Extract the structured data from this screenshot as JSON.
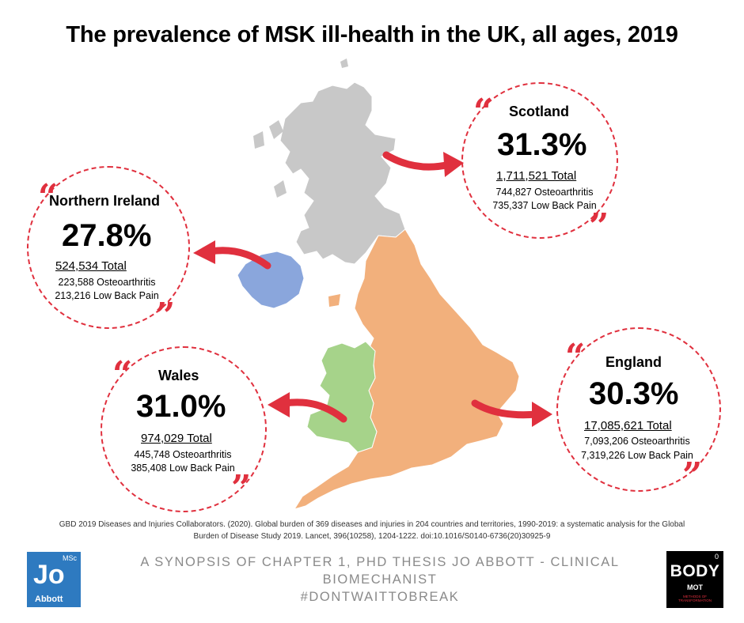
{
  "title": "The prevalence of MSK ill-health in the UK, all ages, 2019",
  "colors": {
    "accent": "#e0303e",
    "scotland": "#c8c8c8",
    "england": "#f2b07c",
    "wales": "#a6d38a",
    "northern_ireland": "#8aa6dc"
  },
  "icons": {
    "quote_open": "“",
    "quote_close": "”"
  },
  "regions": {
    "scotland": {
      "name": "Scotland",
      "percent": "31.3%",
      "total": "1,711,521 Total",
      "osteoarthritis": "744,827 Osteoarthritis",
      "back_pain": "735,337 Low Back Pain"
    },
    "northern_ireland": {
      "name": "Northern Ireland",
      "percent": "27.8%",
      "total": "524,534 Total",
      "osteoarthritis": "223,588 Osteoarthritis",
      "back_pain": "213,216 Low Back Pain"
    },
    "wales": {
      "name": "Wales",
      "percent": "31.0%",
      "total": "974,029 Total",
      "osteoarthritis": "445,748 Osteoarthritis",
      "back_pain": "385,408 Low Back Pain"
    },
    "england": {
      "name": "England",
      "percent": "30.3%",
      "total": "17,085,621 Total",
      "osteoarthritis": "7,093,206 Osteoarthritis",
      "back_pain": "7,319,226 Low Back Pain"
    }
  },
  "reference": "GBD 2019 Diseases and Injuries Collaborators. (2020). Global burden of 369 diseases and injuries in 204 countries and territories, 1990-2019: a systematic analysis for the Global Burden of Disease Study 2019. Lancet, 396(10258), 1204-1222. doi:10.1016/S0140-6736(20)30925-9",
  "footer": {
    "line1": "A SYNOPSIS OF CHAPTER 1, PHD THESIS JO ABBOTT - CLINICAL",
    "line2": "BIOMECHANIST",
    "line3": "#DONTWAITTOBREAK"
  },
  "logo_jo": {
    "msc": "MSc",
    "jo": "Jo",
    "name": "Abbott"
  },
  "logo_body": {
    "zero": "0",
    "body": "BODY",
    "mot": "MOT",
    "sub": "METHODS OF TRANSFORMATION"
  }
}
